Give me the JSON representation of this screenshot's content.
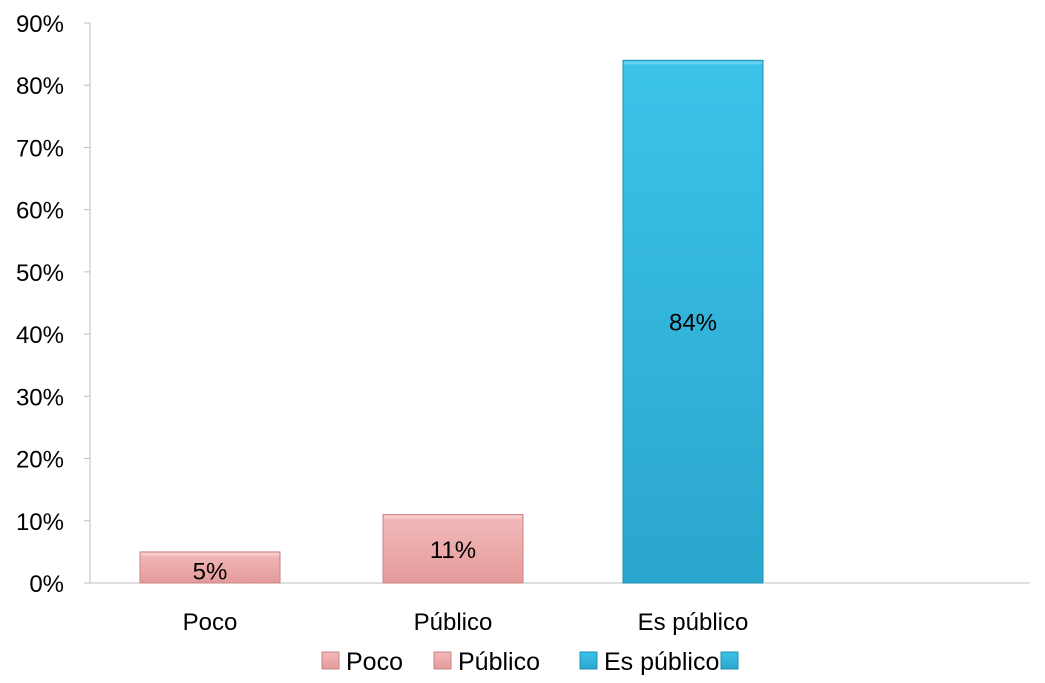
{
  "chart_data": {
    "type": "bar",
    "title": "",
    "xlabel": "",
    "ylabel": "",
    "categories": [
      "Poco",
      "Público",
      "Es público"
    ],
    "values": [
      5,
      11,
      84
    ],
    "data_labels": [
      "5%",
      "11%",
      "84%"
    ],
    "bar_colors": [
      "#e8a0a0",
      "#e8a0a0",
      "#2fb2d8"
    ],
    "ylim": [
      0,
      90
    ],
    "yticks": [
      0,
      10,
      20,
      30,
      40,
      50,
      60,
      70,
      80,
      90
    ],
    "ytick_labels": [
      "0%",
      "10%",
      "20%",
      "30%",
      "40%",
      "50%",
      "60%",
      "70%",
      "80%",
      "90%"
    ],
    "grid": false,
    "legend": {
      "placement": "bottom",
      "entries": [
        {
          "label": "Poco",
          "color": "#e8a0a0"
        },
        {
          "label": "Público",
          "color": "#e8a0a0"
        },
        {
          "label": "Es público",
          "color": "#2fb2d8"
        },
        {
          "label": "",
          "color": "#2fb2d8"
        }
      ]
    }
  }
}
